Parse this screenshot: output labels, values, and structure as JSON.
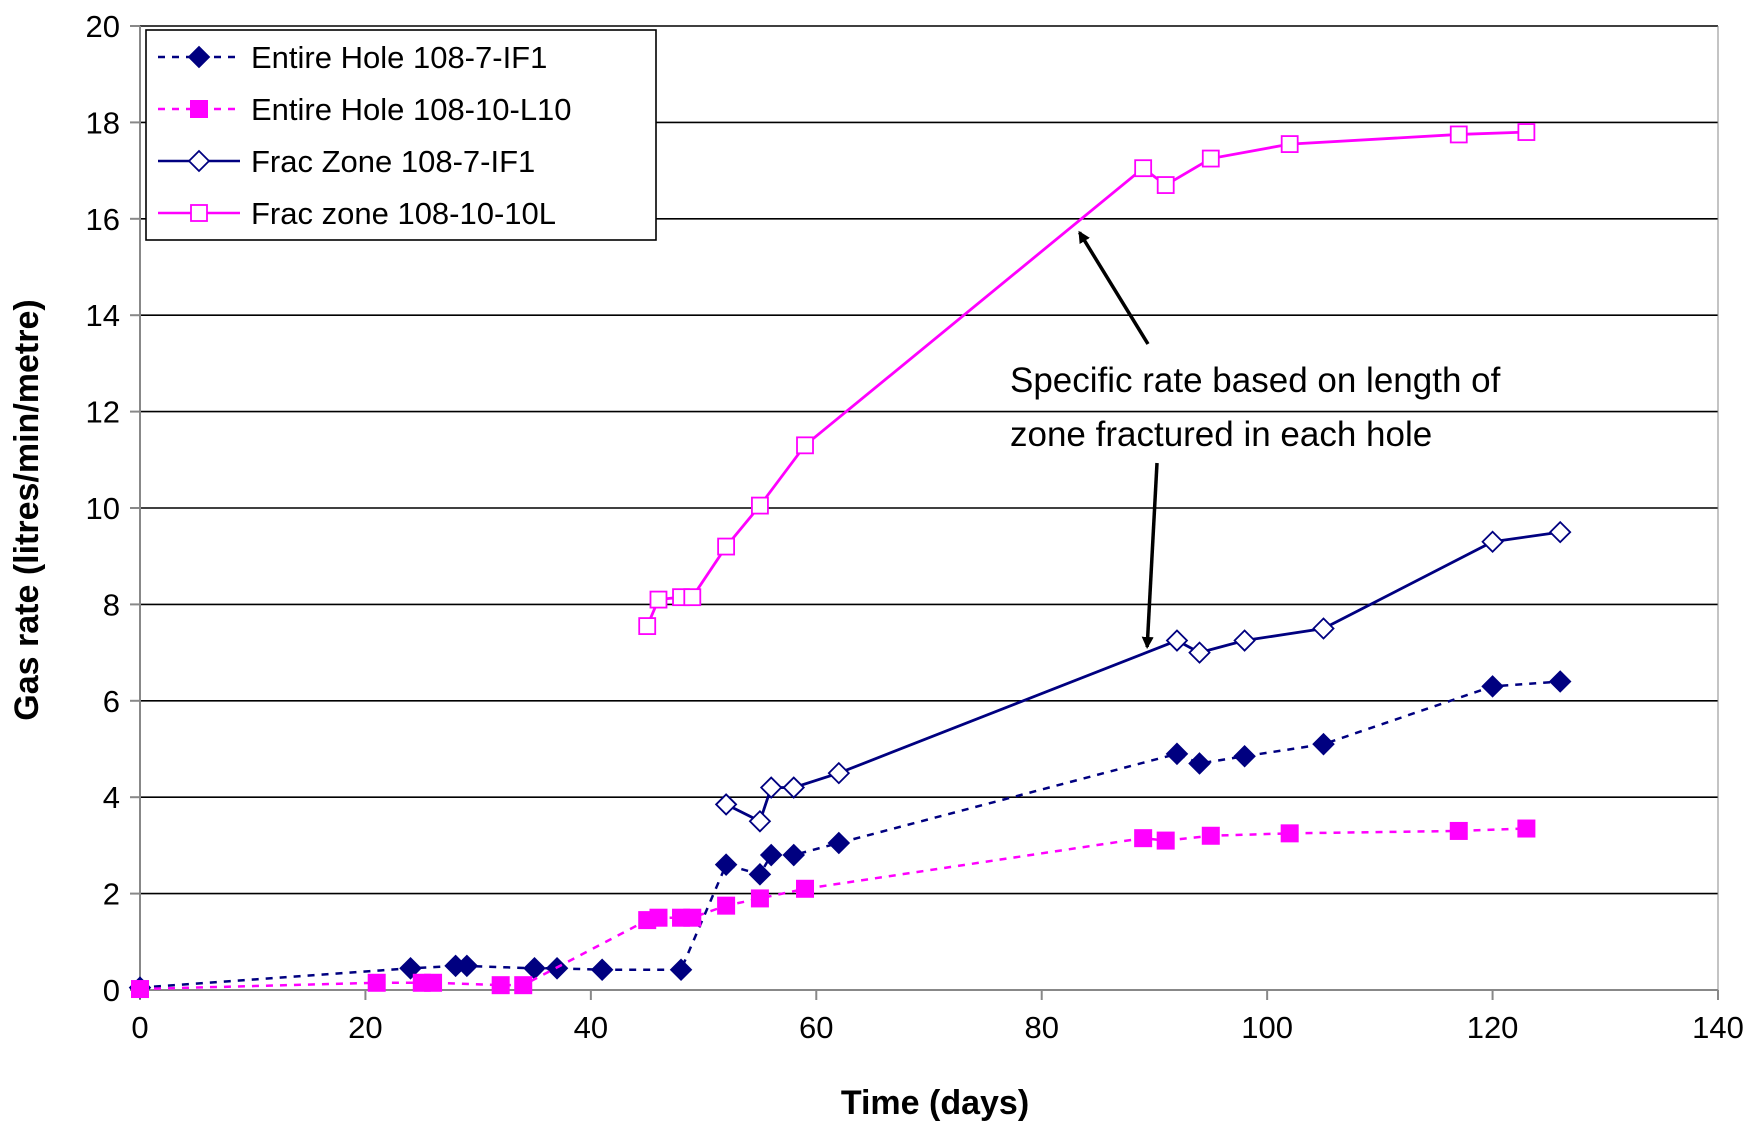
{
  "chart_data": {
    "type": "line",
    "title": "",
    "xlabel": "Time (days)",
    "ylabel": "Gas rate (litres/min/metre)",
    "xlim": [
      0,
      140
    ],
    "ylim": [
      0,
      20
    ],
    "xticks": [
      0,
      20,
      40,
      60,
      80,
      100,
      120,
      140
    ],
    "yticks": [
      0,
      2,
      4,
      6,
      8,
      10,
      12,
      14,
      16,
      18,
      20
    ],
    "grid": "horizontal",
    "legend_position": "top-left",
    "series": [
      {
        "name": "Entire Hole 108-7-IF1",
        "color": "#000080",
        "line": "dashed",
        "marker": "filled-diamond",
        "points": [
          [
            0,
            0.05
          ],
          [
            24,
            0.45
          ],
          [
            28,
            0.5
          ],
          [
            29,
            0.5
          ],
          [
            35,
            0.45
          ],
          [
            37,
            0.45
          ],
          [
            41,
            0.42
          ],
          [
            48,
            0.42
          ],
          [
            52,
            2.6
          ],
          [
            55,
            2.4
          ],
          [
            56,
            2.8
          ],
          [
            58,
            2.8
          ],
          [
            62,
            3.05
          ],
          [
            92,
            4.9
          ],
          [
            94,
            4.7
          ],
          [
            98,
            4.85
          ],
          [
            105,
            5.1
          ],
          [
            120,
            6.3
          ],
          [
            126,
            6.4
          ]
        ]
      },
      {
        "name": "Entire Hole 108-10-L10",
        "color": "#FF00FF",
        "line": "dashed",
        "marker": "filled-square",
        "points": [
          [
            0,
            0.02
          ],
          [
            21,
            0.15
          ],
          [
            25,
            0.15
          ],
          [
            26,
            0.15
          ],
          [
            32,
            0.1
          ],
          [
            34,
            0.1
          ],
          [
            45,
            1.45
          ],
          [
            46,
            1.5
          ],
          [
            48,
            1.5
          ],
          [
            49,
            1.5
          ],
          [
            52,
            1.75
          ],
          [
            55,
            1.9
          ],
          [
            59,
            2.1
          ],
          [
            89,
            3.15
          ],
          [
            91,
            3.1
          ],
          [
            95,
            3.2
          ],
          [
            102,
            3.25
          ],
          [
            117,
            3.3
          ],
          [
            123,
            3.35
          ]
        ]
      },
      {
        "name": "Frac Zone 108-7-IF1",
        "color": "#000080",
        "line": "solid",
        "marker": "open-diamond",
        "points": [
          [
            52,
            3.85
          ],
          [
            55,
            3.5
          ],
          [
            56,
            4.2
          ],
          [
            58,
            4.2
          ],
          [
            62,
            4.5
          ],
          [
            92,
            7.25
          ],
          [
            94,
            7.0
          ],
          [
            98,
            7.25
          ],
          [
            105,
            7.5
          ],
          [
            120,
            9.3
          ],
          [
            126,
            9.5
          ]
        ]
      },
      {
        "name": "Frac zone 108-10-10L",
        "color": "#FF00FF",
        "line": "solid",
        "marker": "open-square",
        "points": [
          [
            45,
            7.55
          ],
          [
            46,
            8.1
          ],
          [
            48,
            8.15
          ],
          [
            49,
            8.15
          ],
          [
            52,
            9.2
          ],
          [
            55,
            10.05
          ],
          [
            59,
            11.3
          ],
          [
            89,
            17.05
          ],
          [
            91,
            16.7
          ],
          [
            95,
            17.25
          ],
          [
            102,
            17.55
          ],
          [
            117,
            17.75
          ],
          [
            123,
            17.8
          ]
        ]
      }
    ],
    "annotations": [
      {
        "lines": [
          "Specific rate based on length of",
          "zone fractured in each hole"
        ],
        "anchor": [
          88,
          12.0
        ],
        "arrows_to": [
          [
            83,
            15.8
          ],
          [
            89,
            7.2
          ]
        ]
      }
    ]
  }
}
